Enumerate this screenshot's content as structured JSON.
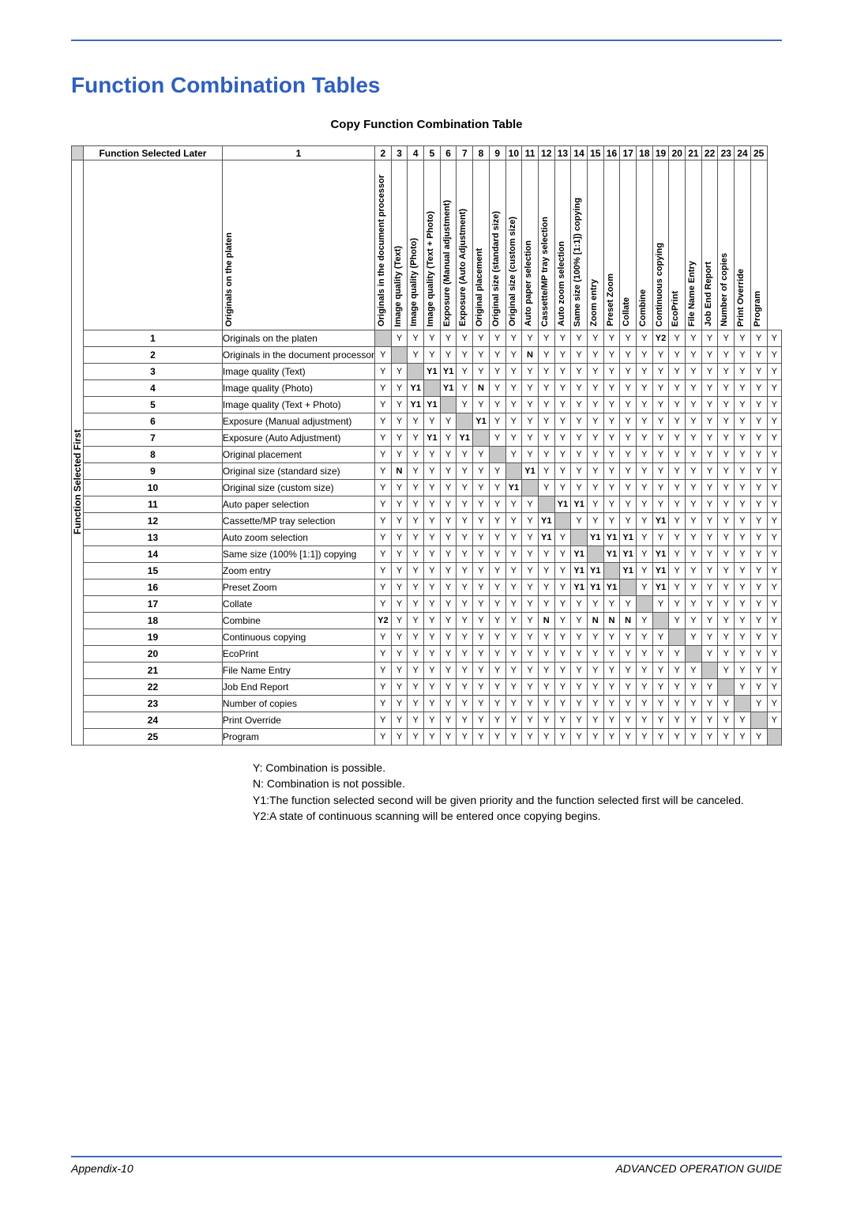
{
  "title": "Function Combination Tables",
  "subtitle": "Copy Function Combination Table",
  "header_later": "Function Selected Later",
  "header_first": "Function Selected First",
  "functions": [
    "Originals on the platen",
    "Originals in the document processor",
    "Image quality (Text)",
    "Image quality (Photo)",
    "Image quality (Text + Photo)",
    "Exposure (Manual adjustment)",
    "Exposure (Auto Adjustment)",
    "Original placement",
    "Original size (standard size)",
    "Original size (custom size)",
    "Auto paper selection",
    "Cassette/MP tray selection",
    "Auto zoom selection",
    "Same size (100% [1:1]) copying",
    "Zoom entry",
    "Preset Zoom",
    "Collate",
    "Combine",
    "Continuous copying",
    "EcoPrint",
    "File Name Entry",
    "Job End Report",
    "Number of copies",
    "Print Override",
    "Program"
  ],
  "matrix": [
    [
      "",
      "Y",
      "Y",
      "Y",
      "Y",
      "Y",
      "Y",
      "Y",
      "Y",
      "Y",
      "Y",
      "Y",
      "Y",
      "Y",
      "Y",
      "Y",
      "Y",
      "Y2",
      "Y",
      "Y",
      "Y",
      "Y",
      "Y",
      "Y",
      "Y"
    ],
    [
      "Y",
      "",
      "Y",
      "Y",
      "Y",
      "Y",
      "Y",
      "Y",
      "Y",
      "N",
      "Y",
      "Y",
      "Y",
      "Y",
      "Y",
      "Y",
      "Y",
      "Y",
      "Y",
      "Y",
      "Y",
      "Y",
      "Y",
      "Y",
      "Y"
    ],
    [
      "Y",
      "Y",
      "",
      "Y1",
      "Y1",
      "Y",
      "Y",
      "Y",
      "Y",
      "Y",
      "Y",
      "Y",
      "Y",
      "Y",
      "Y",
      "Y",
      "Y",
      "Y",
      "Y",
      "Y",
      "Y",
      "Y",
      "Y",
      "Y",
      "Y"
    ],
    [
      "Y",
      "Y",
      "Y1",
      "",
      "Y1",
      "Y",
      "N",
      "Y",
      "Y",
      "Y",
      "Y",
      "Y",
      "Y",
      "Y",
      "Y",
      "Y",
      "Y",
      "Y",
      "Y",
      "Y",
      "Y",
      "Y",
      "Y",
      "Y",
      "Y"
    ],
    [
      "Y",
      "Y",
      "Y1",
      "Y1",
      "",
      "Y",
      "Y",
      "Y",
      "Y",
      "Y",
      "Y",
      "Y",
      "Y",
      "Y",
      "Y",
      "Y",
      "Y",
      "Y",
      "Y",
      "Y",
      "Y",
      "Y",
      "Y",
      "Y",
      "Y"
    ],
    [
      "Y",
      "Y",
      "Y",
      "Y",
      "Y",
      "",
      "Y1",
      "Y",
      "Y",
      "Y",
      "Y",
      "Y",
      "Y",
      "Y",
      "Y",
      "Y",
      "Y",
      "Y",
      "Y",
      "Y",
      "Y",
      "Y",
      "Y",
      "Y",
      "Y"
    ],
    [
      "Y",
      "Y",
      "Y",
      "Y1",
      "Y",
      "Y1",
      "",
      "Y",
      "Y",
      "Y",
      "Y",
      "Y",
      "Y",
      "Y",
      "Y",
      "Y",
      "Y",
      "Y",
      "Y",
      "Y",
      "Y",
      "Y",
      "Y",
      "Y",
      "Y"
    ],
    [
      "Y",
      "Y",
      "Y",
      "Y",
      "Y",
      "Y",
      "Y",
      "",
      "Y",
      "Y",
      "Y",
      "Y",
      "Y",
      "Y",
      "Y",
      "Y",
      "Y",
      "Y",
      "Y",
      "Y",
      "Y",
      "Y",
      "Y",
      "Y",
      "Y"
    ],
    [
      "Y",
      "N",
      "Y",
      "Y",
      "Y",
      "Y",
      "Y",
      "Y",
      "",
      "Y1",
      "Y",
      "Y",
      "Y",
      "Y",
      "Y",
      "Y",
      "Y",
      "Y",
      "Y",
      "Y",
      "Y",
      "Y",
      "Y",
      "Y",
      "Y"
    ],
    [
      "Y",
      "Y",
      "Y",
      "Y",
      "Y",
      "Y",
      "Y",
      "Y",
      "Y1",
      "",
      "Y",
      "Y",
      "Y",
      "Y",
      "Y",
      "Y",
      "Y",
      "Y",
      "Y",
      "Y",
      "Y",
      "Y",
      "Y",
      "Y",
      "Y"
    ],
    [
      "Y",
      "Y",
      "Y",
      "Y",
      "Y",
      "Y",
      "Y",
      "Y",
      "Y",
      "Y",
      "",
      "Y1",
      "Y1",
      "Y",
      "Y",
      "Y",
      "Y",
      "Y",
      "Y",
      "Y",
      "Y",
      "Y",
      "Y",
      "Y",
      "Y"
    ],
    [
      "Y",
      "Y",
      "Y",
      "Y",
      "Y",
      "Y",
      "Y",
      "Y",
      "Y",
      "Y",
      "Y1",
      "",
      "Y",
      "Y",
      "Y",
      "Y",
      "Y",
      "Y1",
      "Y",
      "Y",
      "Y",
      "Y",
      "Y",
      "Y",
      "Y"
    ],
    [
      "Y",
      "Y",
      "Y",
      "Y",
      "Y",
      "Y",
      "Y",
      "Y",
      "Y",
      "Y",
      "Y1",
      "Y",
      "",
      "Y1",
      "Y1",
      "Y1",
      "Y",
      "Y",
      "Y",
      "Y",
      "Y",
      "Y",
      "Y",
      "Y",
      "Y"
    ],
    [
      "Y",
      "Y",
      "Y",
      "Y",
      "Y",
      "Y",
      "Y",
      "Y",
      "Y",
      "Y",
      "Y",
      "Y",
      "Y1",
      "",
      "Y1",
      "Y1",
      "Y",
      "Y1",
      "Y",
      "Y",
      "Y",
      "Y",
      "Y",
      "Y",
      "Y"
    ],
    [
      "Y",
      "Y",
      "Y",
      "Y",
      "Y",
      "Y",
      "Y",
      "Y",
      "Y",
      "Y",
      "Y",
      "Y",
      "Y1",
      "Y1",
      "",
      "Y1",
      "Y",
      "Y1",
      "Y",
      "Y",
      "Y",
      "Y",
      "Y",
      "Y",
      "Y"
    ],
    [
      "Y",
      "Y",
      "Y",
      "Y",
      "Y",
      "Y",
      "Y",
      "Y",
      "Y",
      "Y",
      "Y",
      "Y",
      "Y1",
      "Y1",
      "Y1",
      "",
      "Y",
      "Y1",
      "Y",
      "Y",
      "Y",
      "Y",
      "Y",
      "Y",
      "Y"
    ],
    [
      "Y",
      "Y",
      "Y",
      "Y",
      "Y",
      "Y",
      "Y",
      "Y",
      "Y",
      "Y",
      "Y",
      "Y",
      "Y",
      "Y",
      "Y",
      "Y",
      "",
      "Y",
      "Y",
      "Y",
      "Y",
      "Y",
      "Y",
      "Y",
      "Y"
    ],
    [
      "Y2",
      "Y",
      "Y",
      "Y",
      "Y",
      "Y",
      "Y",
      "Y",
      "Y",
      "Y",
      "N",
      "Y",
      "Y",
      "N",
      "N",
      "N",
      "Y",
      "",
      "Y",
      "Y",
      "Y",
      "Y",
      "Y",
      "Y",
      "Y"
    ],
    [
      "Y",
      "Y",
      "Y",
      "Y",
      "Y",
      "Y",
      "Y",
      "Y",
      "Y",
      "Y",
      "Y",
      "Y",
      "Y",
      "Y",
      "Y",
      "Y",
      "Y",
      "Y",
      "",
      "Y",
      "Y",
      "Y",
      "Y",
      "Y",
      "Y"
    ],
    [
      "Y",
      "Y",
      "Y",
      "Y",
      "Y",
      "Y",
      "Y",
      "Y",
      "Y",
      "Y",
      "Y",
      "Y",
      "Y",
      "Y",
      "Y",
      "Y",
      "Y",
      "Y",
      "Y",
      "",
      "Y",
      "Y",
      "Y",
      "Y",
      "Y"
    ],
    [
      "Y",
      "Y",
      "Y",
      "Y",
      "Y",
      "Y",
      "Y",
      "Y",
      "Y",
      "Y",
      "Y",
      "Y",
      "Y",
      "Y",
      "Y",
      "Y",
      "Y",
      "Y",
      "Y",
      "Y",
      "",
      "Y",
      "Y",
      "Y",
      "Y"
    ],
    [
      "Y",
      "Y",
      "Y",
      "Y",
      "Y",
      "Y",
      "Y",
      "Y",
      "Y",
      "Y",
      "Y",
      "Y",
      "Y",
      "Y",
      "Y",
      "Y",
      "Y",
      "Y",
      "Y",
      "Y",
      "Y",
      "",
      "Y",
      "Y",
      "Y"
    ],
    [
      "Y",
      "Y",
      "Y",
      "Y",
      "Y",
      "Y",
      "Y",
      "Y",
      "Y",
      "Y",
      "Y",
      "Y",
      "Y",
      "Y",
      "Y",
      "Y",
      "Y",
      "Y",
      "Y",
      "Y",
      "Y",
      "Y",
      "",
      "Y",
      "Y"
    ],
    [
      "Y",
      "Y",
      "Y",
      "Y",
      "Y",
      "Y",
      "Y",
      "Y",
      "Y",
      "Y",
      "Y",
      "Y",
      "Y",
      "Y",
      "Y",
      "Y",
      "Y",
      "Y",
      "Y",
      "Y",
      "Y",
      "Y",
      "Y",
      "",
      "Y"
    ],
    [
      "Y",
      "Y",
      "Y",
      "Y",
      "Y",
      "Y",
      "Y",
      "Y",
      "Y",
      "Y",
      "Y",
      "Y",
      "Y",
      "Y",
      "Y",
      "Y",
      "Y",
      "Y",
      "Y",
      "Y",
      "Y",
      "Y",
      "Y",
      "Y",
      ""
    ]
  ],
  "legend": {
    "y": "Y:  Combination is possible.",
    "n": "N:  Combination is not possible.",
    "y1": "Y1:The function selected second will be given priority and the function selected first will be canceled.",
    "y2": "Y2:A state of continuous scanning will be entered once copying begins."
  },
  "footer": {
    "left": "Appendix-10",
    "right": "ADVANCED OPERATION GUIDE"
  },
  "colors": {
    "accent": "#2f5fbf",
    "rule": "#3b6bbf",
    "diag_bg": "#c8c8c8",
    "corner_bg": "#d0d0d0",
    "border": "#555555"
  }
}
